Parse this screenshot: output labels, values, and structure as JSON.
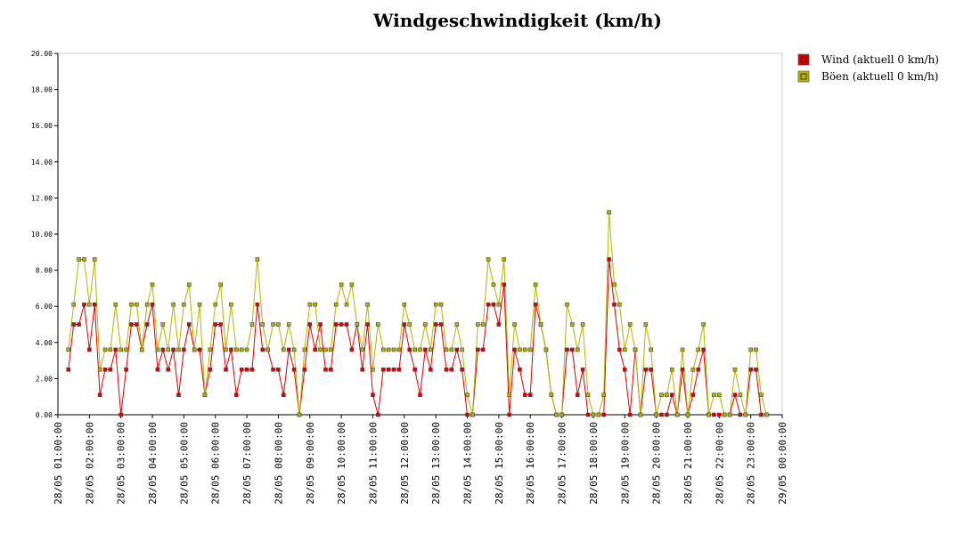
{
  "chart_data": {
    "type": "line",
    "title": "Windgeschwindigkeit (km/h)",
    "x": [
      "28/05 01:20:00",
      "28/05 01:30:00",
      "28/05 01:40:00",
      "28/05 01:50:00",
      "28/05 02:00:00",
      "28/05 02:10:00",
      "28/05 02:20:00",
      "28/05 02:30:00",
      "28/05 02:40:00",
      "28/05 02:50:00",
      "28/05 03:00:00",
      "28/05 03:10:00",
      "28/05 03:20:00",
      "28/05 03:30:00",
      "28/05 03:40:00",
      "28/05 03:50:00",
      "28/05 04:00:00",
      "28/05 04:10:00",
      "28/05 04:20:00",
      "28/05 04:30:00",
      "28/05 04:40:00",
      "28/05 04:50:00",
      "28/05 05:00:00",
      "28/05 05:10:00",
      "28/05 05:20:00",
      "28/05 05:30:00",
      "28/05 05:40:00",
      "28/05 05:50:00",
      "28/05 06:00:00",
      "28/05 06:10:00",
      "28/05 06:20:00",
      "28/05 06:30:00",
      "28/05 06:40:00",
      "28/05 06:50:00",
      "28/05 07:00:00",
      "28/05 07:10:00",
      "28/05 07:20:00",
      "28/05 07:30:00",
      "28/05 07:40:00",
      "28/05 07:50:00",
      "28/05 08:00:00",
      "28/05 08:10:00",
      "28/05 08:20:00",
      "28/05 08:30:00",
      "28/05 08:40:00",
      "28/05 08:50:00",
      "28/05 09:00:00",
      "28/05 09:10:00",
      "28/05 09:20:00",
      "28/05 09:30:00",
      "28/05 09:40:00",
      "28/05 09:50:00",
      "28/05 10:00:00",
      "28/05 10:10:00",
      "28/05 10:20:00",
      "28/05 10:30:00",
      "28/05 10:40:00",
      "28/05 10:50:00",
      "28/05 11:00:00",
      "28/05 11:10:00",
      "28/05 11:20:00",
      "28/05 11:30:00",
      "28/05 11:40:00",
      "28/05 11:50:00",
      "28/05 12:00:00",
      "28/05 12:10:00",
      "28/05 12:20:00",
      "28/05 12:30:00",
      "28/05 12:40:00",
      "28/05 12:50:00",
      "28/05 13:00:00",
      "28/05 13:10:00",
      "28/05 13:20:00",
      "28/05 13:30:00",
      "28/05 13:40:00",
      "28/05 13:50:00",
      "28/05 14:00:00",
      "28/05 14:10:00",
      "28/05 14:20:00",
      "28/05 14:30:00",
      "28/05 14:40:00",
      "28/05 14:50:00",
      "28/05 15:00:00",
      "28/05 15:10:00",
      "28/05 15:20:00",
      "28/05 15:30:00",
      "28/05 15:40:00",
      "28/05 15:50:00",
      "28/05 16:00:00",
      "28/05 16:10:00",
      "28/05 16:20:00",
      "28/05 16:30:00",
      "28/05 16:40:00",
      "28/05 16:50:00",
      "28/05 17:00:00",
      "28/05 17:10:00",
      "28/05 17:20:00",
      "28/05 17:30:00",
      "28/05 17:40:00",
      "28/05 17:50:00",
      "28/05 18:00:00",
      "28/05 18:10:00",
      "28/05 18:20:00",
      "28/05 18:30:00",
      "28/05 18:40:00",
      "28/05 18:50:00",
      "28/05 19:00:00",
      "28/05 19:10:00",
      "28/05 19:20:00",
      "28/05 19:30:00",
      "28/05 19:40:00",
      "28/05 19:50:00",
      "28/05 20:00:00",
      "28/05 20:10:00",
      "28/05 20:20:00",
      "28/05 20:30:00",
      "28/05 20:40:00",
      "28/05 20:50:00",
      "28/05 21:00:00",
      "28/05 21:10:00",
      "28/05 21:20:00",
      "28/05 21:30:00",
      "28/05 21:40:00",
      "28/05 21:50:00",
      "28/05 22:00:00",
      "28/05 22:10:00",
      "28/05 22:20:00",
      "28/05 22:30:00",
      "28/05 22:40:00",
      "28/05 22:50:00",
      "28/05 23:00:00",
      "28/05 23:10:00",
      "28/05 23:20:00",
      "28/05 23:30:00"
    ],
    "series": [
      {
        "name": "Wind (aktuell 0 km/h)",
        "color": "#e00000",
        "values": [
          2.5,
          5.0,
          5.0,
          6.1,
          3.6,
          6.1,
          1.1,
          2.5,
          2.5,
          3.6,
          0,
          2.5,
          5.0,
          5.0,
          3.6,
          5.0,
          6.1,
          2.5,
          3.6,
          2.5,
          3.6,
          1.1,
          3.6,
          5.0,
          3.6,
          3.6,
          1.1,
          2.5,
          5.0,
          5.0,
          2.5,
          3.6,
          1.1,
          2.5,
          2.5,
          2.5,
          6.1,
          3.6,
          3.6,
          2.5,
          2.5,
          1.1,
          3.6,
          2.5,
          0,
          2.5,
          5.0,
          3.6,
          5.0,
          2.5,
          2.5,
          5.0,
          5.0,
          5.0,
          3.6,
          5.0,
          2.5,
          5.0,
          1.1,
          0,
          2.5,
          2.5,
          2.5,
          2.5,
          5.0,
          3.6,
          2.5,
          1.1,
          3.6,
          2.5,
          5.0,
          5.0,
          2.5,
          2.5,
          3.6,
          2.5,
          0,
          0,
          3.6,
          3.6,
          6.1,
          6.1,
          5.0,
          7.2,
          0,
          3.6,
          2.5,
          1.1,
          1.1,
          6.1,
          5.0,
          3.6,
          1.1,
          0,
          0,
          3.6,
          3.6,
          1.1,
          2.5,
          0,
          0,
          0,
          0,
          8.6,
          6.1,
          3.6,
          2.5,
          0,
          3.6,
          0,
          2.5,
          2.5,
          0,
          0,
          0,
          1.1,
          0,
          2.5,
          0,
          1.1,
          2.5,
          3.6,
          0,
          0,
          0,
          0,
          0,
          1.1,
          0,
          0,
          2.5,
          2.5,
          0,
          0
        ]
      },
      {
        "name": "Böen (aktuell 0 km/h)",
        "color": "#b4b400",
        "values": [
          3.6,
          6.1,
          8.6,
          8.6,
          6.1,
          8.6,
          2.5,
          3.6,
          3.6,
          6.1,
          3.6,
          3.6,
          6.1,
          6.1,
          3.6,
          6.1,
          7.2,
          3.6,
          5.0,
          3.6,
          6.1,
          3.6,
          6.1,
          7.2,
          3.6,
          6.1,
          1.1,
          3.6,
          6.1,
          7.2,
          3.6,
          6.1,
          3.6,
          3.6,
          3.6,
          5.0,
          8.6,
          5.0,
          3.6,
          5.0,
          5.0,
          3.6,
          5.0,
          3.6,
          0,
          3.6,
          6.1,
          6.1,
          3.6,
          3.6,
          3.6,
          6.1,
          7.2,
          6.1,
          7.2,
          5.0,
          3.6,
          6.1,
          2.5,
          5.0,
          3.6,
          3.6,
          3.6,
          3.6,
          6.1,
          5.0,
          3.6,
          3.6,
          5.0,
          3.6,
          6.1,
          6.1,
          3.6,
          3.6,
          5.0,
          3.6,
          1.1,
          0,
          5.0,
          5.0,
          8.6,
          7.2,
          6.1,
          8.6,
          1.1,
          5.0,
          3.6,
          3.6,
          3.6,
          7.2,
          5.0,
          3.6,
          1.1,
          0,
          0,
          6.1,
          5.0,
          3.6,
          5.0,
          1.1,
          0,
          0,
          1.1,
          11.2,
          7.2,
          6.1,
          3.6,
          5.0,
          3.6,
          0,
          5.0,
          3.6,
          0,
          1.1,
          1.1,
          2.5,
          0,
          3.6,
          0,
          2.5,
          3.6,
          5.0,
          0,
          1.1,
          1.1,
          0,
          0,
          2.5,
          1.1,
          0,
          3.6,
          3.6,
          1.1,
          0
        ]
      }
    ],
    "xlim": [
      "28/05 01:00:00",
      "29/05 00:00:00"
    ],
    "xticks": [
      "28/05 01:00:00",
      "28/05 02:00:00",
      "28/05 03:00:00",
      "28/05 04:00:00",
      "28/05 05:00:00",
      "28/05 06:00:00",
      "28/05 07:00:00",
      "28/05 08:00:00",
      "28/05 09:00:00",
      "28/05 10:00:00",
      "28/05 11:00:00",
      "28/05 12:00:00",
      "28/05 13:00:00",
      "28/05 14:00:00",
      "28/05 15:00:00",
      "28/05 16:00:00",
      "28/05 17:00:00",
      "28/05 18:00:00",
      "28/05 19:00:00",
      "28/05 20:00:00",
      "28/05 21:00:00",
      "28/05 22:00:00",
      "28/05 23:00:00",
      "29/05 00:00:00"
    ],
    "ylim": [
      0,
      20
    ],
    "yticks": [
      {
        "value": 0,
        "label": "0.00"
      },
      {
        "value": 2,
        "label": "2.00"
      },
      {
        "value": 4,
        "label": "4.00"
      },
      {
        "value": 6,
        "label": "6.00"
      },
      {
        "value": 8,
        "label": "8.00"
      },
      {
        "value": 10,
        "label": "10.00"
      },
      {
        "value": 12,
        "label": "12.00"
      },
      {
        "value": 14,
        "label": "14.00"
      },
      {
        "value": 16,
        "label": "16.00"
      },
      {
        "value": 18,
        "label": "18.00"
      },
      {
        "value": 20,
        "label": "20.00"
      }
    ],
    "legend": "right"
  }
}
